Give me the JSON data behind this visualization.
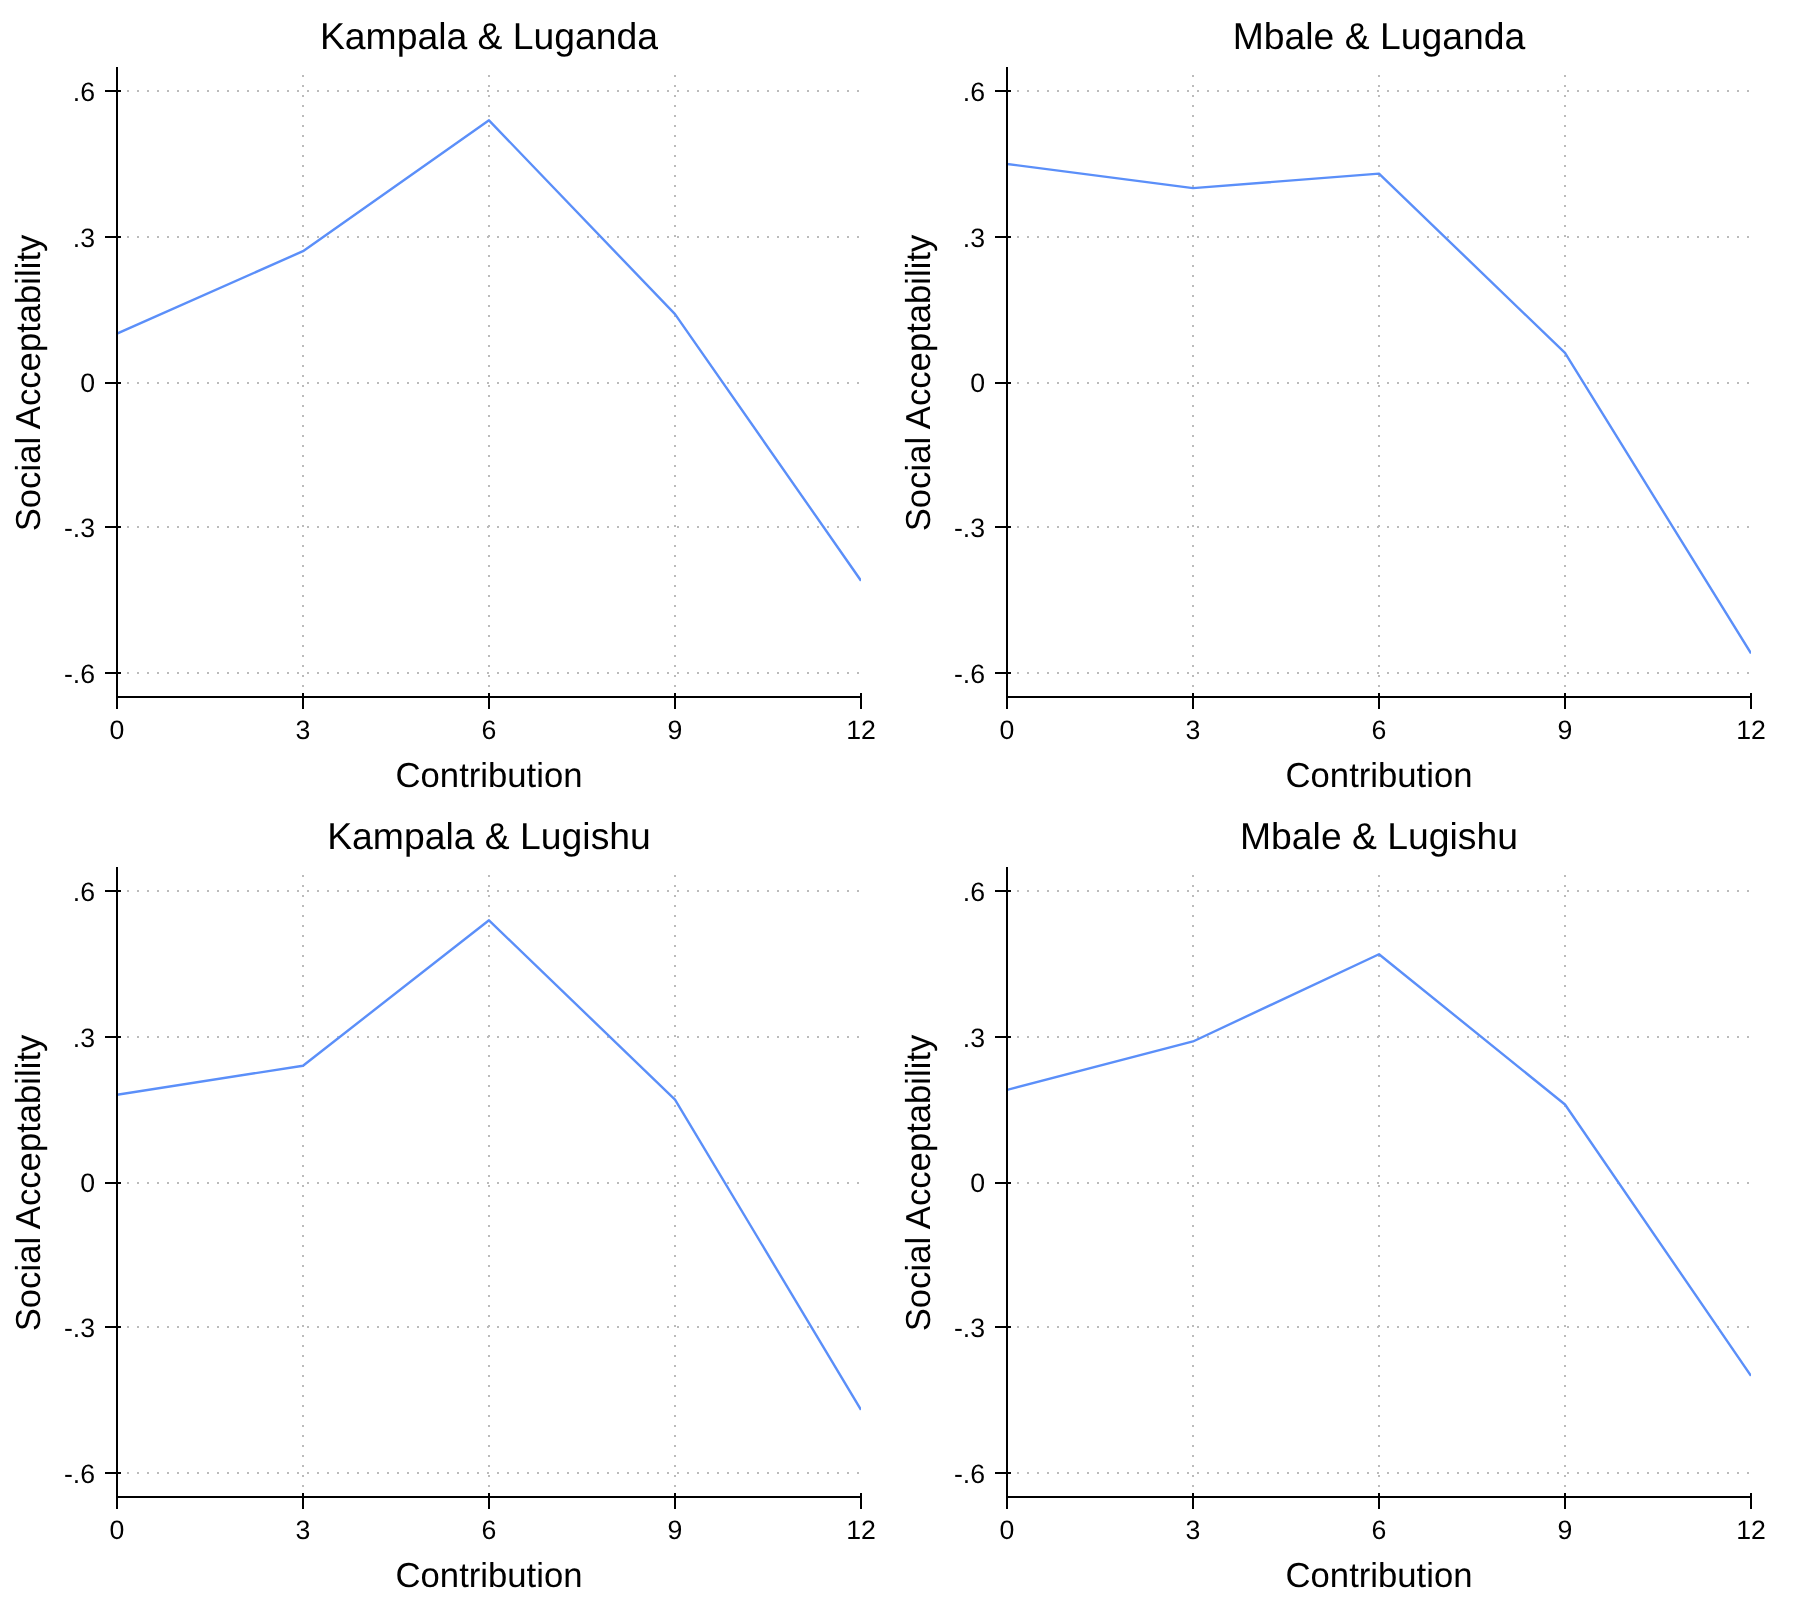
{
  "chart_data": [
    {
      "type": "line",
      "title": "Kampala & Luganda",
      "xlabel": "Contribution",
      "ylabel": "Social Acceptability",
      "x": [
        0,
        3,
        6,
        9,
        12
      ],
      "series": [
        {
          "color": "#5b8ff9",
          "values": [
            0.1,
            0.27,
            0.54,
            0.14,
            -0.41
          ]
        }
      ],
      "xlim": [
        0,
        12
      ],
      "ylim": [
        -0.65,
        0.65
      ],
      "xticks": [
        0,
        3,
        6,
        9,
        12
      ],
      "yticks": [
        {
          "value": -0.6,
          "label": "-.6"
        },
        {
          "value": -0.3,
          "label": "-.3"
        },
        {
          "value": 0,
          "label": "0"
        },
        {
          "value": 0.3,
          "label": ".3"
        },
        {
          "value": 0.6,
          "label": ".6"
        }
      ],
      "grid": true
    },
    {
      "type": "line",
      "title": "Mbale & Luganda",
      "xlabel": "Contribution",
      "ylabel": "Social Acceptability",
      "x": [
        0,
        3,
        6,
        9,
        12
      ],
      "series": [
        {
          "color": "#5b8ff9",
          "values": [
            0.45,
            0.4,
            0.43,
            0.06,
            -0.56
          ]
        }
      ],
      "xlim": [
        0,
        12
      ],
      "ylim": [
        -0.65,
        0.65
      ],
      "xticks": [
        0,
        3,
        6,
        9,
        12
      ],
      "yticks": [
        {
          "value": -0.6,
          "label": "-.6"
        },
        {
          "value": -0.3,
          "label": "-.3"
        },
        {
          "value": 0,
          "label": "0"
        },
        {
          "value": 0.3,
          "label": ".3"
        },
        {
          "value": 0.6,
          "label": ".6"
        }
      ],
      "grid": true
    },
    {
      "type": "line",
      "title": "Kampala & Lugishu",
      "xlabel": "Contribution",
      "ylabel": "Social Acceptability",
      "x": [
        0,
        3,
        6,
        9,
        12
      ],
      "series": [
        {
          "color": "#5b8ff9",
          "values": [
            0.18,
            0.24,
            0.54,
            0.17,
            -0.47
          ]
        }
      ],
      "xlim": [
        0,
        12
      ],
      "ylim": [
        -0.65,
        0.65
      ],
      "xticks": [
        0,
        3,
        6,
        9,
        12
      ],
      "yticks": [
        {
          "value": -0.6,
          "label": "-.6"
        },
        {
          "value": -0.3,
          "label": "-.3"
        },
        {
          "value": 0,
          "label": "0"
        },
        {
          "value": 0.3,
          "label": ".3"
        },
        {
          "value": 0.6,
          "label": ".6"
        }
      ],
      "grid": true
    },
    {
      "type": "line",
      "title": "Mbale & Lugishu",
      "xlabel": "Contribution",
      "ylabel": "Social Acceptability",
      "x": [
        0,
        3,
        6,
        9,
        12
      ],
      "series": [
        {
          "color": "#5b8ff9",
          "values": [
            0.19,
            0.29,
            0.47,
            0.16,
            -0.4
          ]
        }
      ],
      "xlim": [
        0,
        12
      ],
      "ylim": [
        -0.65,
        0.65
      ],
      "xticks": [
        0,
        3,
        6,
        9,
        12
      ],
      "yticks": [
        {
          "value": -0.6,
          "label": "-.6"
        },
        {
          "value": -0.3,
          "label": "-.3"
        },
        {
          "value": 0,
          "label": "0"
        },
        {
          "value": 0.3,
          "label": ".3"
        },
        {
          "value": 0.6,
          "label": ".6"
        }
      ],
      "grid": true
    }
  ]
}
